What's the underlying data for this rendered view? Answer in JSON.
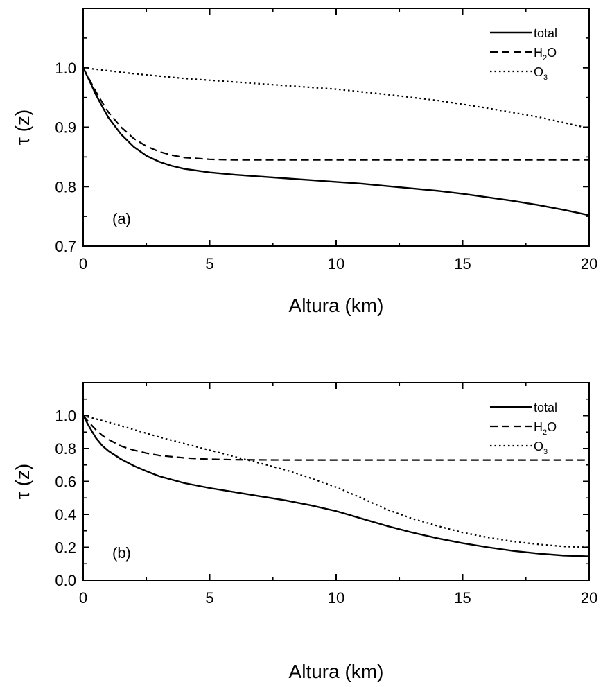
{
  "chart_data": [
    {
      "type": "line",
      "panel_label": "(a)",
      "xlabel": "Altura (km)",
      "ylabel": "τ (z)",
      "xlim": [
        0,
        20
      ],
      "ylim": [
        0.7,
        1.1
      ],
      "xticks": [
        0,
        5,
        10,
        15,
        20
      ],
      "xtick_labels": [
        "0",
        "5",
        "10",
        "15",
        "20"
      ],
      "yticks": [
        0.7,
        0.8,
        0.9,
        1.0
      ],
      "ytick_labels": [
        "0.7",
        "0.8",
        "0.9",
        "1.0"
      ],
      "legend_position": "top-right",
      "grid": false,
      "series": [
        {
          "name": "total",
          "legend_main": "total",
          "legend_sub": "",
          "legend_tail": "",
          "style": "solid",
          "x": [
            0,
            0.25,
            0.5,
            0.75,
            1,
            1.5,
            2,
            2.5,
            3,
            3.5,
            4,
            5,
            6,
            7,
            8,
            9,
            10,
            11,
            12,
            13,
            14,
            15,
            16,
            17,
            18,
            19,
            20
          ],
          "y": [
            1.0,
            0.978,
            0.955,
            0.935,
            0.916,
            0.888,
            0.867,
            0.852,
            0.842,
            0.835,
            0.83,
            0.824,
            0.82,
            0.817,
            0.814,
            0.811,
            0.808,
            0.805,
            0.801,
            0.797,
            0.793,
            0.788,
            0.782,
            0.776,
            0.769,
            0.761,
            0.752
          ]
        },
        {
          "name": "H2O",
          "legend_main": "H",
          "legend_sub": "2",
          "legend_tail": "O",
          "style": "dashed",
          "x": [
            0,
            0.25,
            0.5,
            0.75,
            1,
            1.5,
            2,
            2.5,
            3,
            3.5,
            4,
            5,
            6,
            7,
            8,
            10,
            12,
            14,
            16,
            18,
            20
          ],
          "y": [
            1.0,
            0.98,
            0.96,
            0.942,
            0.925,
            0.9,
            0.881,
            0.868,
            0.859,
            0.853,
            0.849,
            0.846,
            0.845,
            0.845,
            0.845,
            0.845,
            0.845,
            0.845,
            0.845,
            0.845,
            0.845
          ]
        },
        {
          "name": "O3",
          "legend_main": "O",
          "legend_sub": "3",
          "legend_tail": "",
          "style": "dotted",
          "x": [
            0,
            2,
            4,
            6,
            8,
            10,
            12,
            14,
            16,
            18,
            20
          ],
          "y": [
            1.0,
            0.99,
            0.982,
            0.976,
            0.97,
            0.964,
            0.955,
            0.945,
            0.932,
            0.917,
            0.898
          ]
        }
      ]
    },
    {
      "type": "line",
      "panel_label": "(b)",
      "xlabel": "Altura (km)",
      "ylabel": "τ (z)",
      "xlim": [
        0,
        20
      ],
      "ylim": [
        0.0,
        1.2
      ],
      "xticks": [
        0,
        5,
        10,
        15,
        20
      ],
      "xtick_labels": [
        "0",
        "5",
        "10",
        "15",
        "20"
      ],
      "yticks": [
        0.0,
        0.2,
        0.4,
        0.6,
        0.8,
        1.0
      ],
      "ytick_labels": [
        "0.0",
        "0.2",
        "0.4",
        "0.6",
        "0.8",
        "1.0"
      ],
      "legend_position": "top-right",
      "grid": false,
      "series": [
        {
          "name": "total",
          "legend_main": "total",
          "legend_sub": "",
          "legend_tail": "",
          "style": "solid",
          "x": [
            0,
            0.25,
            0.5,
            0.75,
            1,
            1.5,
            2,
            2.5,
            3,
            4,
            5,
            6,
            7,
            8,
            9,
            10,
            11,
            12,
            13,
            14,
            15,
            16,
            17,
            18,
            19,
            20
          ],
          "y": [
            1.0,
            0.93,
            0.865,
            0.818,
            0.785,
            0.735,
            0.695,
            0.662,
            0.632,
            0.59,
            0.56,
            0.535,
            0.51,
            0.485,
            0.455,
            0.42,
            0.375,
            0.33,
            0.29,
            0.255,
            0.225,
            0.2,
            0.178,
            0.162,
            0.15,
            0.145
          ]
        },
        {
          "name": "H2O",
          "legend_main": "H",
          "legend_sub": "2",
          "legend_tail": "O",
          "style": "dashed",
          "x": [
            0,
            0.25,
            0.5,
            0.75,
            1,
            1.5,
            2,
            2.5,
            3,
            4,
            5,
            6,
            8,
            10,
            12,
            14,
            16,
            18,
            20
          ],
          "y": [
            1.0,
            0.955,
            0.915,
            0.88,
            0.855,
            0.815,
            0.79,
            0.772,
            0.758,
            0.743,
            0.735,
            0.732,
            0.73,
            0.73,
            0.73,
            0.73,
            0.73,
            0.73,
            0.73
          ]
        },
        {
          "name": "O3",
          "legend_main": "O",
          "legend_sub": "3",
          "legend_tail": "",
          "style": "dotted",
          "x": [
            0,
            1,
            2,
            3,
            4,
            5,
            6,
            7,
            8,
            9,
            10,
            11,
            12,
            13,
            14,
            15,
            16,
            17,
            18,
            19,
            20
          ],
          "y": [
            1.0,
            0.96,
            0.915,
            0.87,
            0.83,
            0.79,
            0.75,
            0.71,
            0.67,
            0.62,
            0.565,
            0.5,
            0.43,
            0.375,
            0.33,
            0.29,
            0.26,
            0.235,
            0.218,
            0.205,
            0.2
          ]
        }
      ]
    }
  ]
}
